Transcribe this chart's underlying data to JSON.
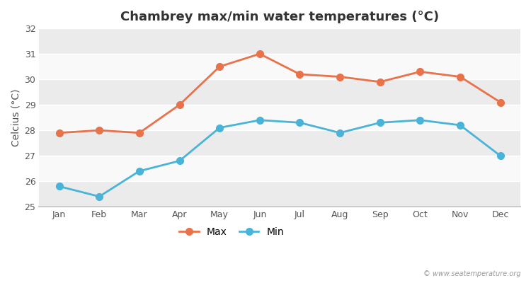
{
  "title": "Chambrey max/min water temperatures (°C)",
  "ylabel": "Celcius (°C)",
  "months": [
    "Jan",
    "Feb",
    "Mar",
    "Apr",
    "May",
    "Jun",
    "Jul",
    "Aug",
    "Sep",
    "Oct",
    "Nov",
    "Dec"
  ],
  "max_values": [
    27.9,
    28.0,
    27.9,
    29.0,
    30.5,
    31.0,
    30.2,
    30.1,
    29.9,
    30.3,
    30.1,
    29.1
  ],
  "min_values": [
    25.8,
    25.4,
    26.4,
    26.8,
    28.1,
    28.4,
    28.3,
    27.9,
    28.3,
    28.4,
    28.2,
    27.0
  ],
  "max_color": "#e8724a",
  "min_color": "#4ab3d8",
  "bg_color": "#ffffff",
  "plot_bg_color": "#f2f2f2",
  "band_color_light": "#f9f9f9",
  "band_color_dark": "#ebebeb",
  "ylim": [
    25,
    32
  ],
  "yticks": [
    25,
    26,
    27,
    28,
    29,
    30,
    31,
    32
  ],
  "watermark": "© www.seatemperature.org",
  "title_fontsize": 13,
  "label_fontsize": 10,
  "tick_fontsize": 9,
  "legend_fontsize": 10,
  "linewidth": 2,
  "markersize": 7
}
